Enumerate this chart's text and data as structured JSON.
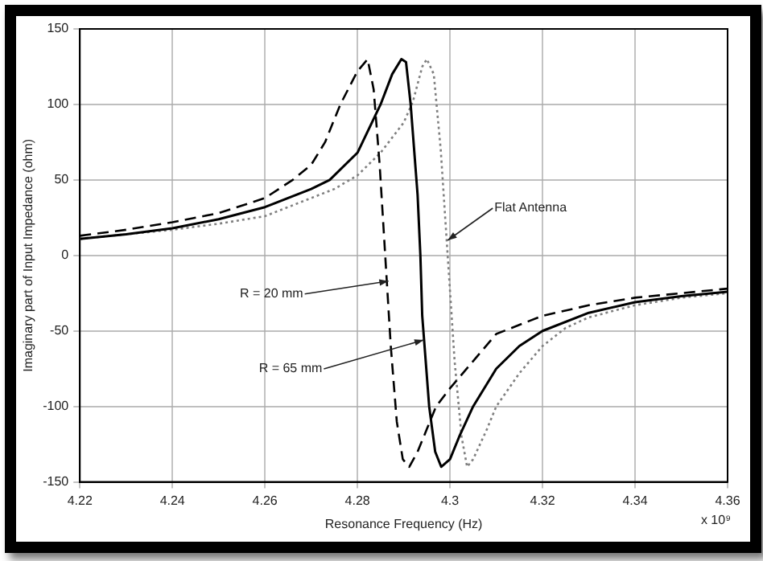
{
  "chart_data": {
    "type": "line",
    "xlabel": "Resonance Frequency (Hz)",
    "ylabel": "Imaginary part of Input Impedance (ohm)",
    "xlim": [
      4.22,
      4.36
    ],
    "xticks": [
      4.22,
      4.24,
      4.26,
      4.28,
      4.3,
      4.32,
      4.34,
      4.36
    ],
    "ylim": [
      -150,
      150
    ],
    "yticks": [
      -150,
      -100,
      -50,
      0,
      50,
      100,
      150
    ],
    "grid": true,
    "legend": false,
    "marker": "none",
    "series": [
      {
        "color": "#000000",
        "line_style": "dashed",
        "x": [
          4.22,
          4.23,
          4.24,
          4.25,
          4.26,
          4.266,
          4.27,
          4.273,
          4.2763,
          4.28,
          4.2822,
          4.2835,
          4.2848,
          4.286,
          4.2872,
          4.2885,
          4.2898,
          4.2912,
          4.293,
          4.295,
          4.297,
          4.3,
          4.305,
          4.31,
          4.32,
          4.33,
          4.34,
          4.35,
          4.36
        ],
        "values": [
          13,
          17,
          22,
          28,
          38,
          50,
          60,
          75,
          100,
          122,
          130,
          110,
          60,
          0,
          -60,
          -110,
          -135,
          -140,
          -130,
          -115,
          -100,
          -88,
          -70,
          -52,
          -40,
          -33,
          -28,
          -25,
          -22
        ]
      },
      {
        "color": "#000000",
        "line_style": "solid",
        "x": [
          4.22,
          4.23,
          4.24,
          4.25,
          4.26,
          4.27,
          4.274,
          4.28,
          4.285,
          4.2875,
          4.2895,
          4.2905,
          4.2915,
          4.293,
          4.2936,
          4.294,
          4.2955,
          4.2968,
          4.2981,
          4.3,
          4.302,
          4.305,
          4.31,
          4.315,
          4.32,
          4.33,
          4.34,
          4.35,
          4.36
        ],
        "values": [
          11,
          14,
          18,
          24,
          32,
          44,
          50,
          68,
          100,
          120,
          130,
          128,
          100,
          40,
          0,
          -40,
          -100,
          -130,
          -140,
          -135,
          -120,
          -100,
          -75,
          -60,
          -50,
          -38,
          -31,
          -27,
          -24
        ]
      },
      {
        "color": "#808080",
        "line_style": "dotted",
        "x": [
          4.22,
          4.23,
          4.24,
          4.25,
          4.26,
          4.27,
          4.275,
          4.28,
          4.285,
          4.29,
          4.292,
          4.294,
          4.295,
          4.2965,
          4.298,
          4.2995,
          4.301,
          4.3025,
          4.3037,
          4.305,
          4.308,
          4.31,
          4.315,
          4.32,
          4.325,
          4.33,
          4.34,
          4.35,
          4.36
        ],
        "values": [
          11,
          14,
          17,
          21,
          26,
          38,
          44,
          53,
          68,
          88,
          102,
          125,
          130,
          120,
          70,
          0,
          -70,
          -120,
          -140,
          -135,
          -115,
          -100,
          -78,
          -60,
          -48,
          -41,
          -33,
          -28,
          -25
        ]
      }
    ],
    "annotations": [
      {
        "text": "Flat Antenna",
        "x": 4.2995,
        "y": 10
      },
      {
        "text": "R = 20 mm",
        "x": 4.2867,
        "y": -17
      },
      {
        "text": "R = 65 mm",
        "x": 4.2943,
        "y": -56
      },
      "x 10⁹"
    ]
  }
}
